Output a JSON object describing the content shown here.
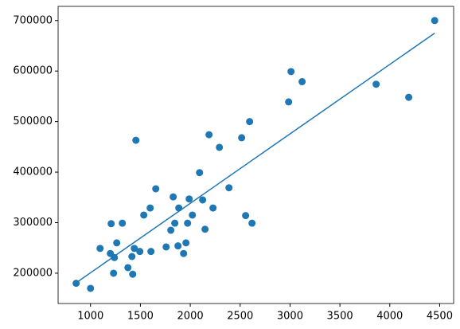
{
  "chart_data": {
    "type": "scatter",
    "x": [
      856,
      1000,
      1096,
      1199,
      1207,
      1231,
      1239,
      1263,
      1319,
      1375,
      1415,
      1423,
      1439,
      1455,
      1494,
      1534,
      1598,
      1606,
      1654,
      1758,
      1805,
      1829,
      1845,
      1877,
      1885,
      1933,
      1957,
      1973,
      1989,
      2021,
      2093,
      2124,
      2148,
      2188,
      2228,
      2292,
      2388,
      2515,
      2555,
      2595,
      2619,
      2986,
      3010,
      3121,
      3863,
      4190,
      4450
    ],
    "values": [
      180000,
      170000,
      249000,
      239000,
      298000,
      200000,
      231000,
      260000,
      299000,
      211000,
      233000,
      198000,
      249000,
      463000,
      243000,
      315000,
      329000,
      243000,
      367000,
      252000,
      285000,
      351000,
      299000,
      254000,
      329000,
      239000,
      260000,
      299000,
      347000,
      315000,
      399000,
      345000,
      287000,
      474000,
      329000,
      449000,
      369000,
      468000,
      314000,
      500000,
      299000,
      539000,
      599000,
      579000,
      574000,
      548000,
      700000
    ],
    "color": "#1f77b4",
    "line": {
      "x": [
        856,
        4450
      ],
      "values": [
        181000,
        675000
      ],
      "color": "#1f77b4"
    },
    "xlim": [
      675,
      4640
    ],
    "ylim": [
      140000,
      728000
    ],
    "xticks": [
      1000,
      1500,
      2000,
      2500,
      3000,
      3500,
      4000,
      4500
    ],
    "yticks": [
      200000,
      300000,
      400000,
      500000,
      600000,
      700000
    ]
  }
}
